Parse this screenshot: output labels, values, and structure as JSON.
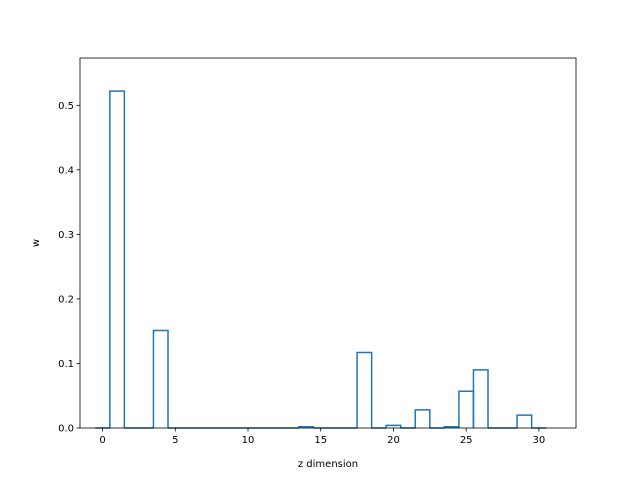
{
  "chart_data": {
    "type": "bar",
    "style": "step-outline",
    "title": "",
    "xlabel": "z dimension",
    "ylabel": "w",
    "xlim": [
      -1.55,
      32.55
    ],
    "ylim": [
      0,
      0.5733
    ],
    "x_ticks": [
      0,
      5,
      10,
      15,
      20,
      25,
      30
    ],
    "y_ticks": [
      0.0,
      0.1,
      0.2,
      0.3,
      0.4,
      0.5
    ],
    "grid": false,
    "legend": "none",
    "color": "#1f77b4",
    "x": [
      0,
      1,
      2,
      3,
      4,
      5,
      6,
      7,
      8,
      9,
      10,
      11,
      12,
      13,
      14,
      15,
      16,
      17,
      18,
      19,
      20,
      21,
      22,
      23,
      24,
      25,
      26,
      27,
      28,
      29,
      30
    ],
    "values": [
      0,
      0.522,
      0,
      0,
      0.151,
      0,
      0,
      0,
      0,
      0,
      0,
      0,
      0,
      0,
      0.002,
      0,
      0,
      0,
      0.117,
      0,
      0.004,
      0,
      0.028,
      0,
      0.002,
      0.057,
      0.09,
      0,
      0,
      0.02,
      0
    ]
  }
}
